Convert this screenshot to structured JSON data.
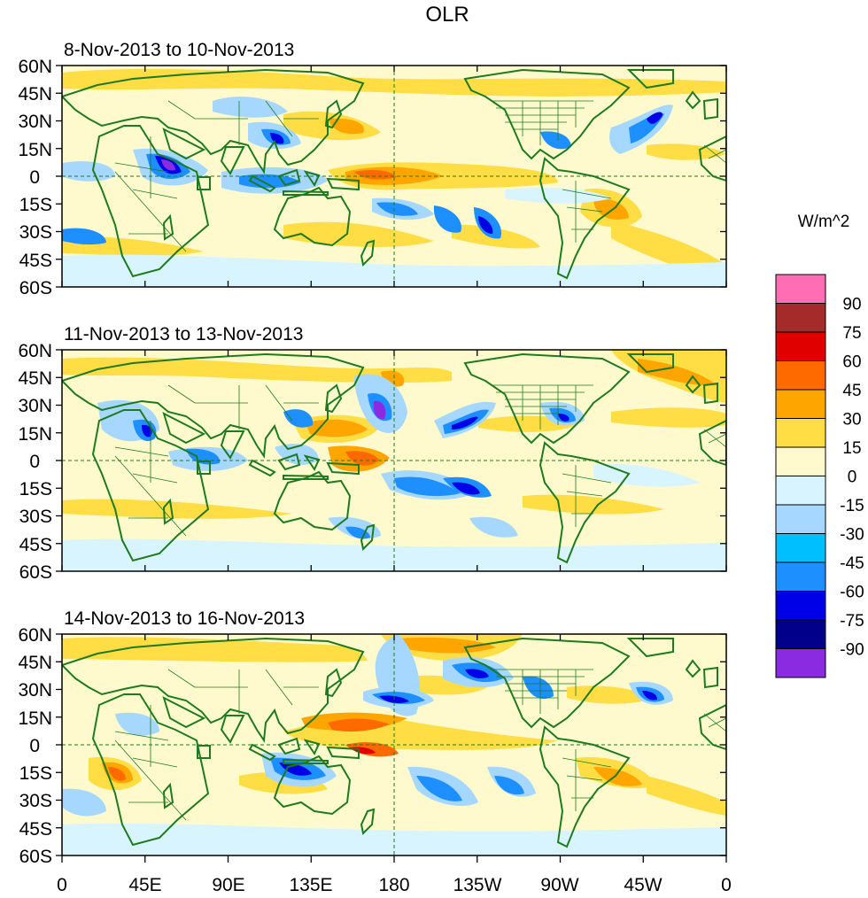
{
  "title": "OLR",
  "units": "W/m^2",
  "panels": [
    {
      "label": "8-Nov-2013 to 10-Nov-2013"
    },
    {
      "label": "11-Nov-2013 to 13-Nov-2013"
    },
    {
      "label": "14-Nov-2013 to 16-Nov-2013"
    }
  ],
  "y_tick_labels": [
    "60N",
    "45N",
    "30N",
    "15N",
    "0",
    "15S",
    "30S",
    "45S",
    "60S"
  ],
  "x_tick_labels": [
    "0",
    "45E",
    "90E",
    "135E",
    "180",
    "135W",
    "90W",
    "45W",
    "0"
  ],
  "colorbar": {
    "labels": [
      "90",
      "75",
      "60",
      "45",
      "30",
      "15",
      "0",
      "-15",
      "-30",
      "-45",
      "-60",
      "-75",
      "-90"
    ],
    "colors": [
      "#ff6eb4",
      "#a52a2a",
      "#e00000",
      "#ff6a00",
      "#ffa500",
      "#ffdd44",
      "#fffacd",
      "#d8f4ff",
      "#a6d8ff",
      "#00bfff",
      "#1e8fff",
      "#0000e6",
      "#00008b",
      "#8a2be2"
    ]
  },
  "map_style": {
    "coast_color": "#1e7a1e",
    "ocean_base": "#fffacd"
  }
}
